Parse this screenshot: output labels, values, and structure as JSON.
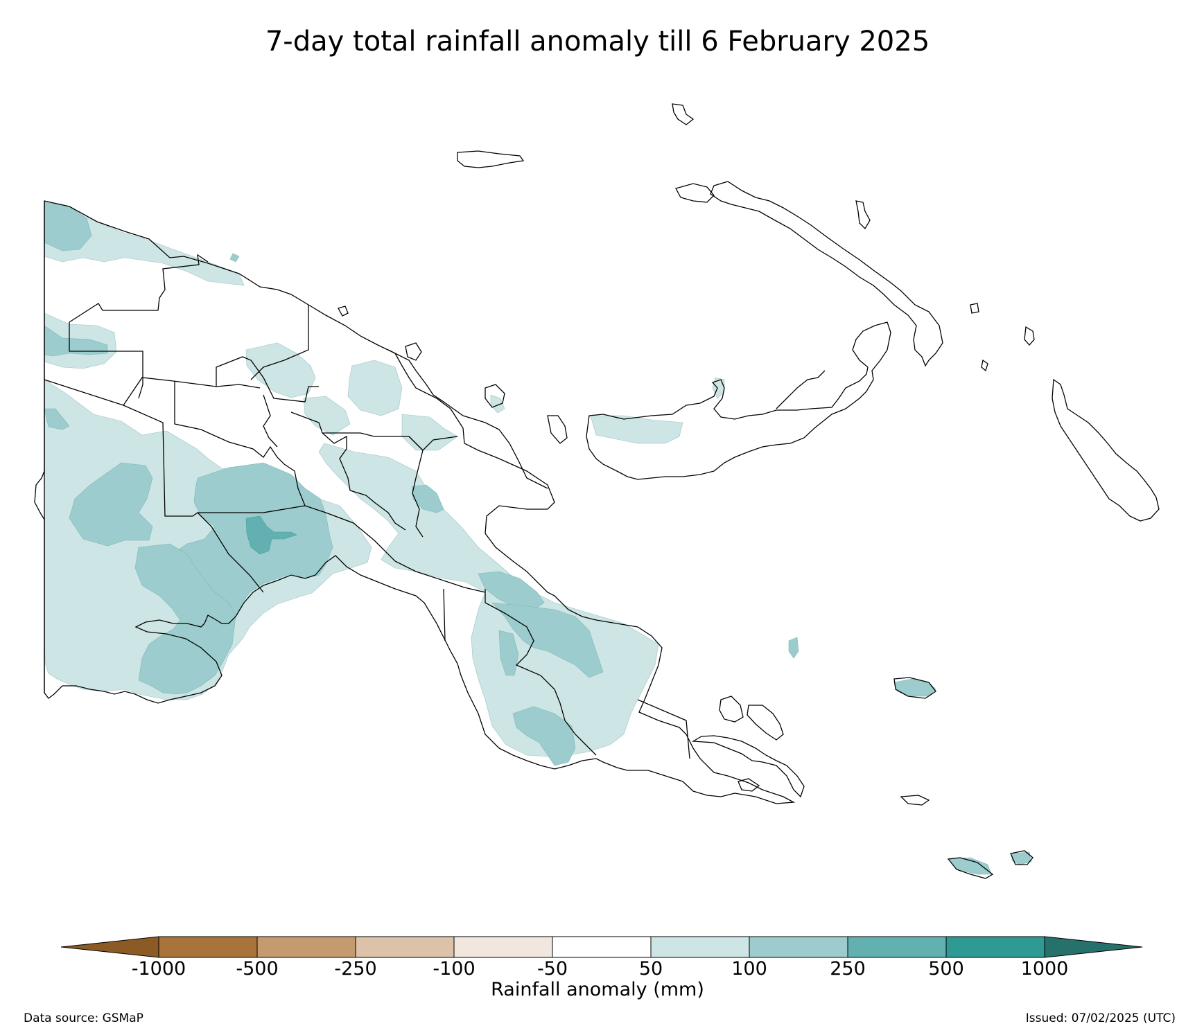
{
  "title": "7-day total rainfall anomaly till 6 February 2025",
  "legend": {
    "label": "Rainfall anomaly (mm)",
    "ticks": [
      "-1000",
      "-500",
      "-250",
      "-100",
      "-50",
      "50",
      "100",
      "250",
      "500",
      "1000"
    ],
    "colors": {
      "extend_low": "#8c5a25",
      "lt_-1000_-500": "#a9743a",
      "-500_-250": "#c49a6e",
      "-250_-100": "#dcc2a8",
      "-100_-50": "#f1e7de",
      "-50_50": "#ffffff",
      "50_100": "#cde5e4",
      "100_250": "#9ccccd",
      "250_500": "#63b0b0",
      "500_1000": "#2f9a93",
      "extend_high": "#26716b"
    }
  },
  "footer": {
    "source": "Data source: GSMaP",
    "issued": "Issued: 07/02/2025 (UTC)"
  },
  "map": {
    "region": "Papua New Guinea",
    "overlay": "rainfall anomaly shading with province boundaries"
  }
}
